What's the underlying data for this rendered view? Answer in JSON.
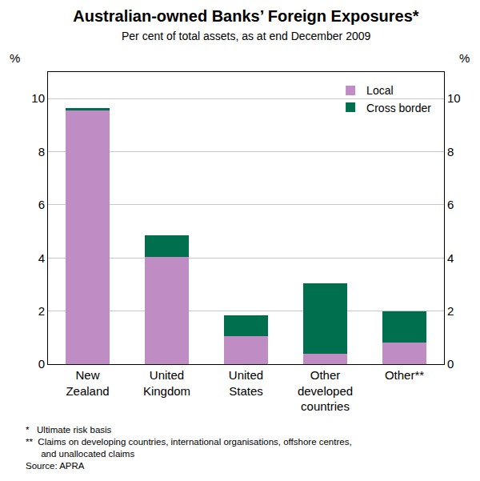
{
  "chart_data": {
    "type": "bar",
    "title": "Australian-owned Banks’ Foreign Exposures*",
    "subtitle": "Per cent of total assets, as at end December 2009",
    "y_label": "%",
    "y2_label": "%",
    "categories": [
      "New Zealand",
      "United Kingdom",
      "United States",
      "Other developed countries",
      "Other**"
    ],
    "series": [
      {
        "name": "Local",
        "color": "#c08cc4",
        "values": [
          9.55,
          4.05,
          1.05,
          0.4,
          0.8
        ]
      },
      {
        "name": "Cross border",
        "color": "#006f4e",
        "values": [
          0.1,
          0.8,
          0.8,
          2.65,
          1.2
        ]
      }
    ],
    "stacked": true,
    "ylim": [
      0,
      11
    ],
    "yticks": [
      0,
      2,
      4,
      6,
      8,
      10
    ],
    "y2lim": [
      0,
      11
    ],
    "y2ticks": [
      0,
      2,
      4,
      6,
      8,
      10
    ],
    "grid": true,
    "legend": "top right",
    "footnotes": [
      "*   Ultimate risk basis",
      "**  Claims on developing countries, international organisations, offshore centres,",
      "      and unallocated claims"
    ],
    "source": "Source: APRA"
  }
}
